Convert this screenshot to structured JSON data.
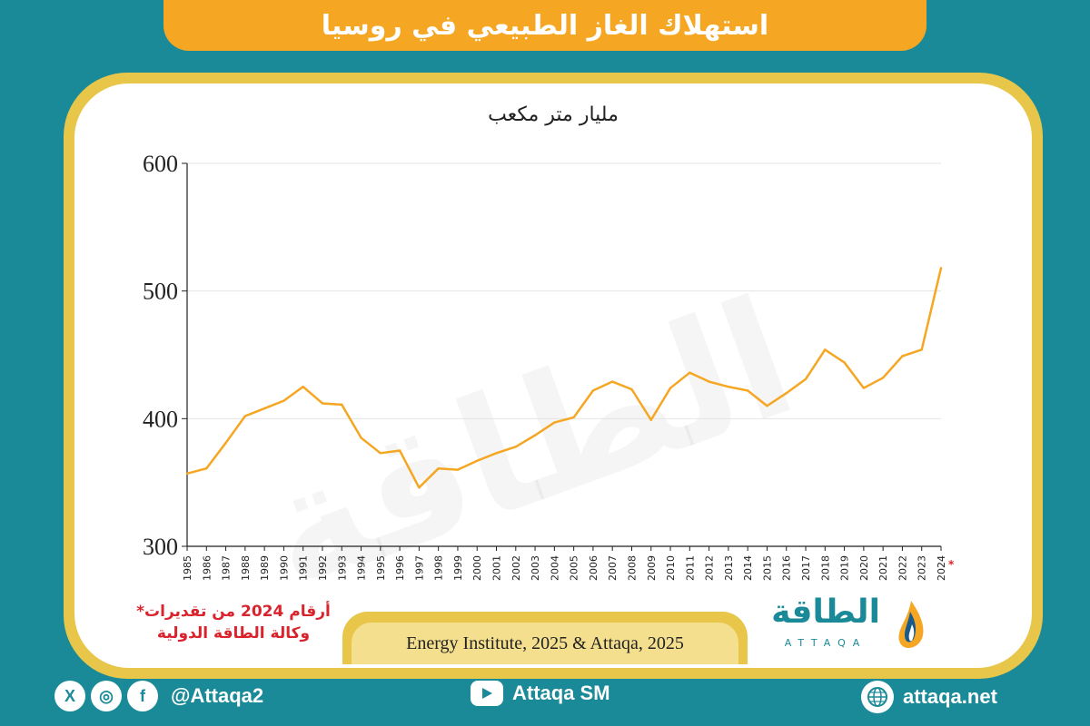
{
  "header": {
    "title": "استهلاك الغاز الطبيعي في روسيا"
  },
  "note": {
    "line1": "*أرقام 2024 من تقديرات",
    "line2": "وكالة الطاقة الدولية"
  },
  "source": {
    "text": "Energy Institute, 2025 & Attaqa, 2025"
  },
  "logo": {
    "name": "الطاقة",
    "sub": "ATTAQA"
  },
  "footer": {
    "social_handle": "@Attaqa2",
    "youtube": "Attaqa SM",
    "website": "attaqa.net"
  },
  "colors": {
    "background": "#1a8a98",
    "accent": "#f5a623",
    "frame": "#e8c64a",
    "line": "#f5a623"
  },
  "chart_data": {
    "type": "line",
    "title": "",
    "ylabel": "مليار متر مكعب",
    "xlabel": "",
    "ylim": [
      300,
      600
    ],
    "yticks": [
      300,
      400,
      500,
      600
    ],
    "grid": true,
    "x": [
      "1985",
      "1986",
      "1987",
      "1988",
      "1989",
      "1990",
      "1991",
      "1992",
      "1993",
      "1994",
      "1995",
      "1996",
      "1997",
      "1998",
      "1999",
      "2000",
      "2001",
      "2002",
      "2003",
      "2004",
      "2005",
      "2006",
      "2007",
      "2008",
      "2009",
      "2010",
      "2011",
      "2012",
      "2013",
      "2014",
      "2015",
      "2016",
      "2017",
      "2018",
      "2019",
      "2020",
      "2021",
      "2022",
      "2023",
      "2024"
    ],
    "x_footnote_marker": {
      "category": "2024",
      "text": "*"
    },
    "series": [
      {
        "values": [
          357,
          361,
          381,
          402,
          408,
          414,
          425,
          412,
          411,
          385,
          373,
          375,
          346,
          361,
          360,
          367,
          373,
          378,
          387,
          397,
          401,
          422,
          429,
          423,
          399,
          424,
          436,
          429,
          425,
          422,
          410,
          420,
          431,
          454,
          444,
          424,
          432,
          449,
          454,
          518
        ]
      }
    ]
  }
}
